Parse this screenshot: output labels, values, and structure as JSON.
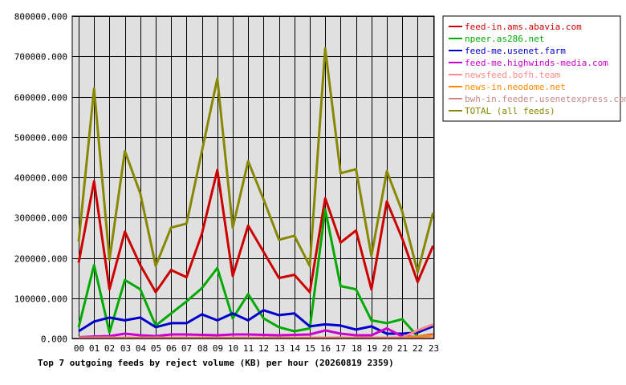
{
  "chart_data": {
    "type": "line",
    "title": "Top 7 outgoing feeds by reject volume (KB) per hour (20260819 2359)",
    "xlabel": "",
    "ylabel": "",
    "ylim": [
      0,
      800000
    ],
    "yticks": [
      "0.000",
      "100000.000",
      "200000.000",
      "300000.000",
      "400000.000",
      "500000.000",
      "600000.000",
      "700000.000",
      "800000.000"
    ],
    "ytick_values": [
      0,
      100000,
      200000,
      300000,
      400000,
      500000,
      600000,
      700000,
      800000
    ],
    "grid": true,
    "legend_position": "top-right",
    "categories": [
      "00",
      "01",
      "02",
      "03",
      "04",
      "05",
      "06",
      "07",
      "08",
      "09",
      "10",
      "11",
      "12",
      "13",
      "14",
      "15",
      "16",
      "17",
      "18",
      "19",
      "20",
      "21",
      "22",
      "23"
    ],
    "series": [
      {
        "name": "feed-in.ams.abavia.com",
        "color": "#cc0000",
        "values": [
          188000,
          390000,
          122000,
          265000,
          182000,
          115000,
          170000,
          152000,
          260000,
          418000,
          155000,
          280000,
          215000,
          150000,
          158000,
          115000,
          348000,
          238000,
          268000,
          122000,
          340000,
          248000,
          140000,
          230000
        ]
      },
      {
        "name": "npeer.as286.net",
        "color": "#00aa00",
        "values": [
          28000,
          182000,
          15000,
          145000,
          122000,
          32000,
          62000,
          92000,
          125000,
          175000,
          50000,
          110000,
          50000,
          28000,
          18000,
          25000,
          320000,
          130000,
          122000,
          45000,
          38000,
          48000,
          5000,
          10000
        ]
      },
      {
        "name": "feed-me.usenet.farm",
        "color": "#0000cc",
        "values": [
          18000,
          42000,
          52000,
          45000,
          52000,
          28000,
          38000,
          38000,
          60000,
          45000,
          62000,
          45000,
          70000,
          58000,
          62000,
          30000,
          35000,
          32000,
          22000,
          30000,
          12000,
          12000,
          15000,
          30000
        ]
      },
      {
        "name": "feed-me.highwinds-media.com",
        "color": "#cc00cc",
        "values": [
          3000,
          5000,
          6000,
          12000,
          8000,
          6000,
          10000,
          10000,
          9000,
          8000,
          10000,
          10000,
          9000,
          8000,
          9000,
          10000,
          20000,
          12000,
          8000,
          8000,
          25000,
          5000,
          4000,
          10000
        ]
      },
      {
        "name": "newsfeed.bofh.team",
        "color": "#ff8888",
        "values": [
          2000,
          2000,
          2000,
          2000,
          2000,
          2000,
          2000,
          2000,
          2000,
          2000,
          2000,
          2000,
          2000,
          2000,
          2000,
          2000,
          2000,
          2000,
          2000,
          2000,
          2000,
          2000,
          20000,
          35000
        ]
      },
      {
        "name": "news-in.neodome.net",
        "color": "#ff8800",
        "values": [
          1000,
          1000,
          1000,
          1000,
          1000,
          1000,
          1000,
          1000,
          1000,
          1000,
          1000,
          1000,
          1000,
          1000,
          1000,
          1000,
          1000,
          1000,
          1000,
          1000,
          1000,
          1000,
          5000,
          8000
        ]
      },
      {
        "name": "bwh-in.feeder.usenetexpress.com",
        "color": "#cc8888",
        "values": [
          500,
          500,
          500,
          500,
          500,
          500,
          500,
          500,
          500,
          500,
          500,
          500,
          500,
          500,
          500,
          500,
          500,
          500,
          500,
          500,
          500,
          500,
          500,
          500
        ]
      },
      {
        "name": "TOTAL (all feeds)",
        "color": "#888800",
        "values": [
          240000,
          620000,
          195000,
          465000,
          360000,
          180000,
          275000,
          285000,
          465000,
          645000,
          275000,
          440000,
          345000,
          245000,
          255000,
          180000,
          720000,
          410000,
          420000,
          205000,
          415000,
          315000,
          165000,
          312000
        ]
      }
    ]
  }
}
